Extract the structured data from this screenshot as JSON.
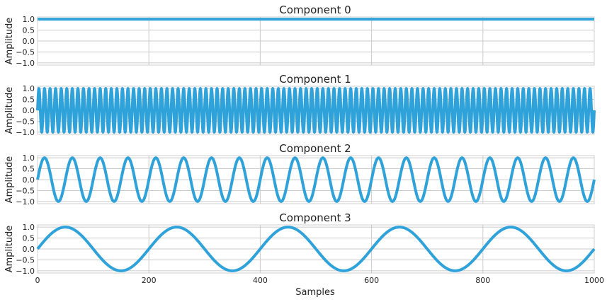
{
  "chart_data": [
    {
      "type": "line",
      "title": "Component 0",
      "ylabel": "Amplitude",
      "xlim": [
        0,
        1000
      ],
      "ylim": [
        -1.1,
        1.1
      ],
      "yticks": [
        "1.0",
        "0.5",
        "0.0",
        "−0.5",
        "−1.0"
      ],
      "xticks": [],
      "series": [
        {
          "function": "constant",
          "amplitude": 1.0,
          "color": "#30a2da"
        }
      ],
      "grid": true
    },
    {
      "type": "line",
      "title": "Component 1",
      "ylabel": "Amplitude",
      "xlim": [
        0,
        1000
      ],
      "ylim": [
        -1.1,
        1.1
      ],
      "yticks": [
        "1.0",
        "0.5",
        "0.0",
        "−0.5",
        "−1.0"
      ],
      "xticks": [],
      "series": [
        {
          "function": "sine",
          "amplitude": 1.0,
          "period_samples": 10,
          "color": "#30a2da"
        }
      ],
      "grid": true
    },
    {
      "type": "line",
      "title": "Component 2",
      "ylabel": "Amplitude",
      "xlim": [
        0,
        1000
      ],
      "ylim": [
        -1.1,
        1.1
      ],
      "yticks": [
        "1.0",
        "0.5",
        "0.0",
        "−0.5",
        "−1.0"
      ],
      "xticks": [],
      "series": [
        {
          "function": "sine",
          "amplitude": 1.0,
          "period_samples": 50,
          "color": "#30a2da"
        }
      ],
      "grid": true
    },
    {
      "type": "line",
      "title": "Component 3",
      "ylabel": "Amplitude",
      "xlabel": "Samples",
      "xlim": [
        0,
        1000
      ],
      "ylim": [
        -1.1,
        1.1
      ],
      "yticks": [
        "1.0",
        "0.5",
        "0.0",
        "−0.5",
        "−1.0"
      ],
      "xticks": [
        "0",
        "200",
        "400",
        "600",
        "800",
        "1000"
      ],
      "series": [
        {
          "function": "sine",
          "amplitude": 1.0,
          "period_samples": 200,
          "color": "#30a2da"
        }
      ],
      "grid": true
    }
  ]
}
